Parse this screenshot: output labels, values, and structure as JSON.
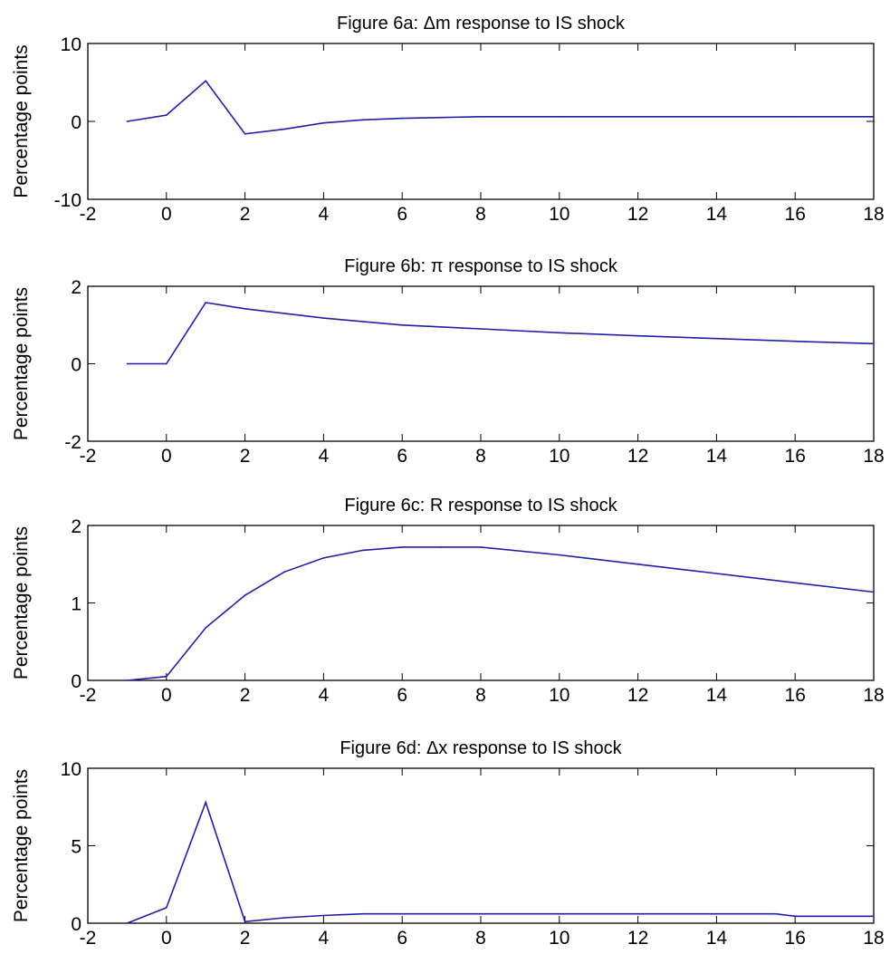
{
  "colors": {
    "line": "#1f1fa8",
    "axes": "#000000",
    "background": "#ffffff"
  },
  "chart_data": [
    {
      "type": "line",
      "title": "Figure 6a: Δm response to IS shock",
      "xlabel": "",
      "ylabel": "Percentage points",
      "xlim": [
        -2,
        18
      ],
      "ylim": [
        -10,
        10
      ],
      "xticks": [
        -2,
        0,
        2,
        4,
        6,
        8,
        10,
        12,
        14,
        16,
        18
      ],
      "yticks": [
        -10,
        0,
        10
      ],
      "grid": false,
      "series": [
        {
          "x": [
            -1,
            0,
            1,
            2,
            3,
            4,
            5,
            6,
            7,
            8,
            10,
            12,
            14,
            16,
            18
          ],
          "y": [
            0,
            0.8,
            5.2,
            -1.6,
            -1.0,
            -0.2,
            0.2,
            0.4,
            0.5,
            0.6,
            0.6,
            0.6,
            0.6,
            0.6,
            0.6
          ]
        }
      ]
    },
    {
      "type": "line",
      "title": "Figure 6b: π response to IS shock",
      "xlabel": "",
      "ylabel": "Percentage points",
      "xlim": [
        -2,
        18
      ],
      "ylim": [
        -2,
        2
      ],
      "xticks": [
        -2,
        0,
        2,
        4,
        6,
        8,
        10,
        12,
        14,
        16,
        18
      ],
      "yticks": [
        -2,
        0,
        2
      ],
      "grid": false,
      "series": [
        {
          "x": [
            -1,
            0,
            1,
            2,
            4,
            6,
            8,
            10,
            12,
            14,
            16,
            18
          ],
          "y": [
            0,
            0,
            1.58,
            1.42,
            1.18,
            1.0,
            0.9,
            0.8,
            0.72,
            0.65,
            0.58,
            0.52
          ]
        }
      ]
    },
    {
      "type": "line",
      "title": "Figure 6c: R response to IS shock",
      "xlabel": "",
      "ylabel": "Percentage points",
      "xlim": [
        -2,
        18
      ],
      "ylim": [
        0,
        2
      ],
      "xticks": [
        -2,
        0,
        2,
        4,
        6,
        8,
        10,
        12,
        14,
        16,
        18
      ],
      "yticks": [
        0,
        1,
        2
      ],
      "grid": false,
      "series": [
        {
          "x": [
            -1,
            0,
            1,
            2,
            3,
            4,
            5,
            6,
            7,
            8,
            10,
            12,
            14,
            16,
            18
          ],
          "y": [
            0,
            0.05,
            0.68,
            1.1,
            1.4,
            1.58,
            1.68,
            1.72,
            1.72,
            1.72,
            1.62,
            1.5,
            1.38,
            1.26,
            1.14
          ]
        }
      ]
    },
    {
      "type": "line",
      "title": "Figure 6d: Δx response to IS shock",
      "xlabel": "",
      "ylabel": "Percentage points",
      "xlim": [
        -2,
        18
      ],
      "ylim": [
        0,
        10
      ],
      "xticks": [
        -2,
        0,
        2,
        4,
        6,
        8,
        10,
        12,
        14,
        16,
        18
      ],
      "yticks": [
        0,
        5,
        10
      ],
      "grid": false,
      "series": [
        {
          "x": [
            -1,
            0,
            1,
            2,
            3,
            4,
            5,
            6,
            8,
            10,
            12,
            14,
            15.5,
            16,
            18
          ],
          "y": [
            0,
            1.0,
            7.8,
            0.1,
            0.35,
            0.5,
            0.6,
            0.6,
            0.6,
            0.6,
            0.6,
            0.6,
            0.6,
            0.45,
            0.45
          ]
        }
      ]
    }
  ]
}
